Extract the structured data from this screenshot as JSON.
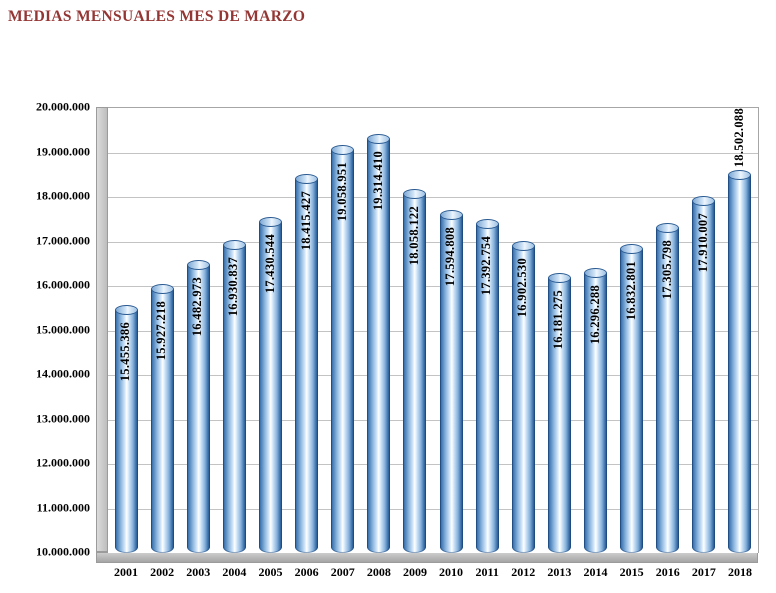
{
  "chart_data": {
    "type": "bar",
    "style": "3d-cylinder",
    "title": "MEDIAS MENSUALES MES DE MARZO",
    "categories": [
      "2001",
      "2002",
      "2003",
      "2004",
      "2005",
      "2006",
      "2007",
      "2008",
      "2009",
      "2010",
      "2011",
      "2012",
      "2013",
      "2014",
      "2015",
      "2016",
      "2017",
      "2018"
    ],
    "values": [
      15455386,
      15927218,
      16482973,
      16930837,
      17430544,
      18415427,
      19058951,
      19314410,
      18058122,
      17594808,
      17392754,
      16902530,
      16181275,
      16296288,
      16832801,
      17305798,
      17910007,
      18502088
    ],
    "value_labels": [
      "15.455.386",
      "15.927.218",
      "16.482.973",
      "16.930.837",
      "17.430.544",
      "18.415.427",
      "19.058.951",
      "19.314.410",
      "18.058.122",
      "17.594.808",
      "17.392.754",
      "16.902.530",
      "16.181.275",
      "16.296.288",
      "16.832.801",
      "17.305.798",
      "17.910.007",
      "18.502.088"
    ],
    "xlabel": "",
    "ylabel": "",
    "ylim": [
      10000000,
      20000000
    ],
    "ytick_step": 1000000,
    "ytick_labels": [
      "20.000.000",
      "19.000.000",
      "18.000.000",
      "17.000.000",
      "16.000.000",
      "15.000.000",
      "14.000.000",
      "13.000.000",
      "12.000.000",
      "11.000.000",
      "10.000.000"
    ],
    "grid": true,
    "legend": false,
    "outside_label_indices": [
      17
    ],
    "colors": {
      "title": "#943634",
      "bar_edge": "#1f4e87",
      "bar_mid": "#8fb8e0",
      "bar_highlight": "#ffffff",
      "wall": "#bdbdbd",
      "gridline": "#c3c3c3",
      "label_text": "#000000"
    }
  }
}
